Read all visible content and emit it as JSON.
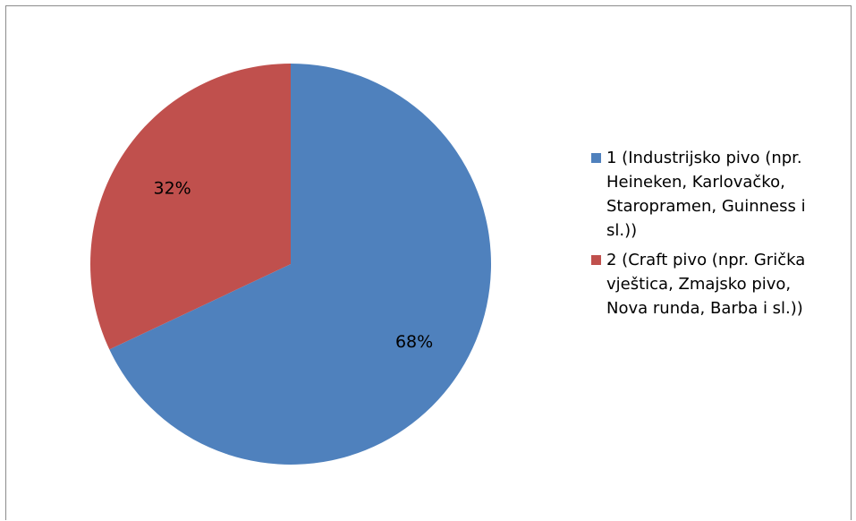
{
  "chart_data": {
    "type": "pie",
    "categories": [
      "1 (Industrijsko pivo (npr. Heineken, Karlovačko, Staropramen, Guinness i sl.))",
      "2 (Craft pivo (npr. Grička vještica, Zmajsko pivo, Nova runda, Barba i sl.))"
    ],
    "values": [
      68,
      32
    ],
    "data_labels": [
      "68%",
      "32%"
    ],
    "colors": [
      "#4F81BD",
      "#C0504D"
    ],
    "legend_position": "right"
  },
  "legend": {
    "items": [
      {
        "lines": [
          "1 (Industrijsko pivo (npr.",
          "Heineken, Karlovačko,",
          "Staropramen, Guinness i",
          "sl.))"
        ]
      },
      {
        "lines": [
          "2 (Craft pivo (npr. Grička",
          "vještica, Zmajsko pivo,",
          "Nova runda, Barba i sl.))"
        ]
      }
    ]
  }
}
